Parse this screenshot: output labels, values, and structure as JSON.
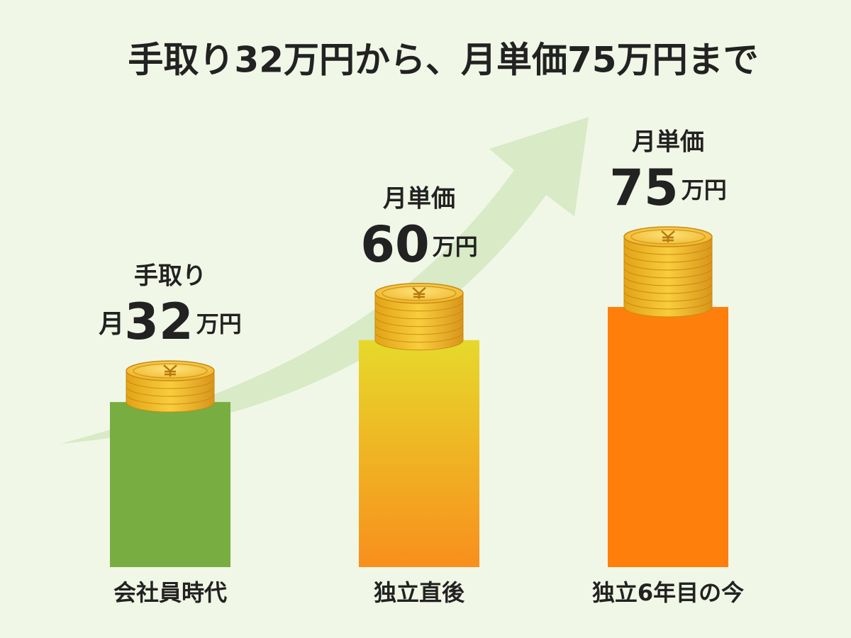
{
  "chart_data": {
    "type": "bar",
    "title": "手取り32万円から、月単価75万円まで",
    "categories": [
      "会社員時代",
      "独立直後",
      "独立6年目の今"
    ],
    "values": [
      32,
      60,
      75
    ],
    "colors": [
      "#78ad42",
      [
        "#e6d92b",
        "#f88f1c"
      ],
      "#ff7f0c"
    ],
    "bar_labels": [
      {
        "head": "手取り",
        "prefix": "月",
        "unit": "万円"
      },
      {
        "head": "月単価",
        "unit": "万円"
      },
      {
        "head": "月単価",
        "unit": "万円"
      }
    ]
  }
}
